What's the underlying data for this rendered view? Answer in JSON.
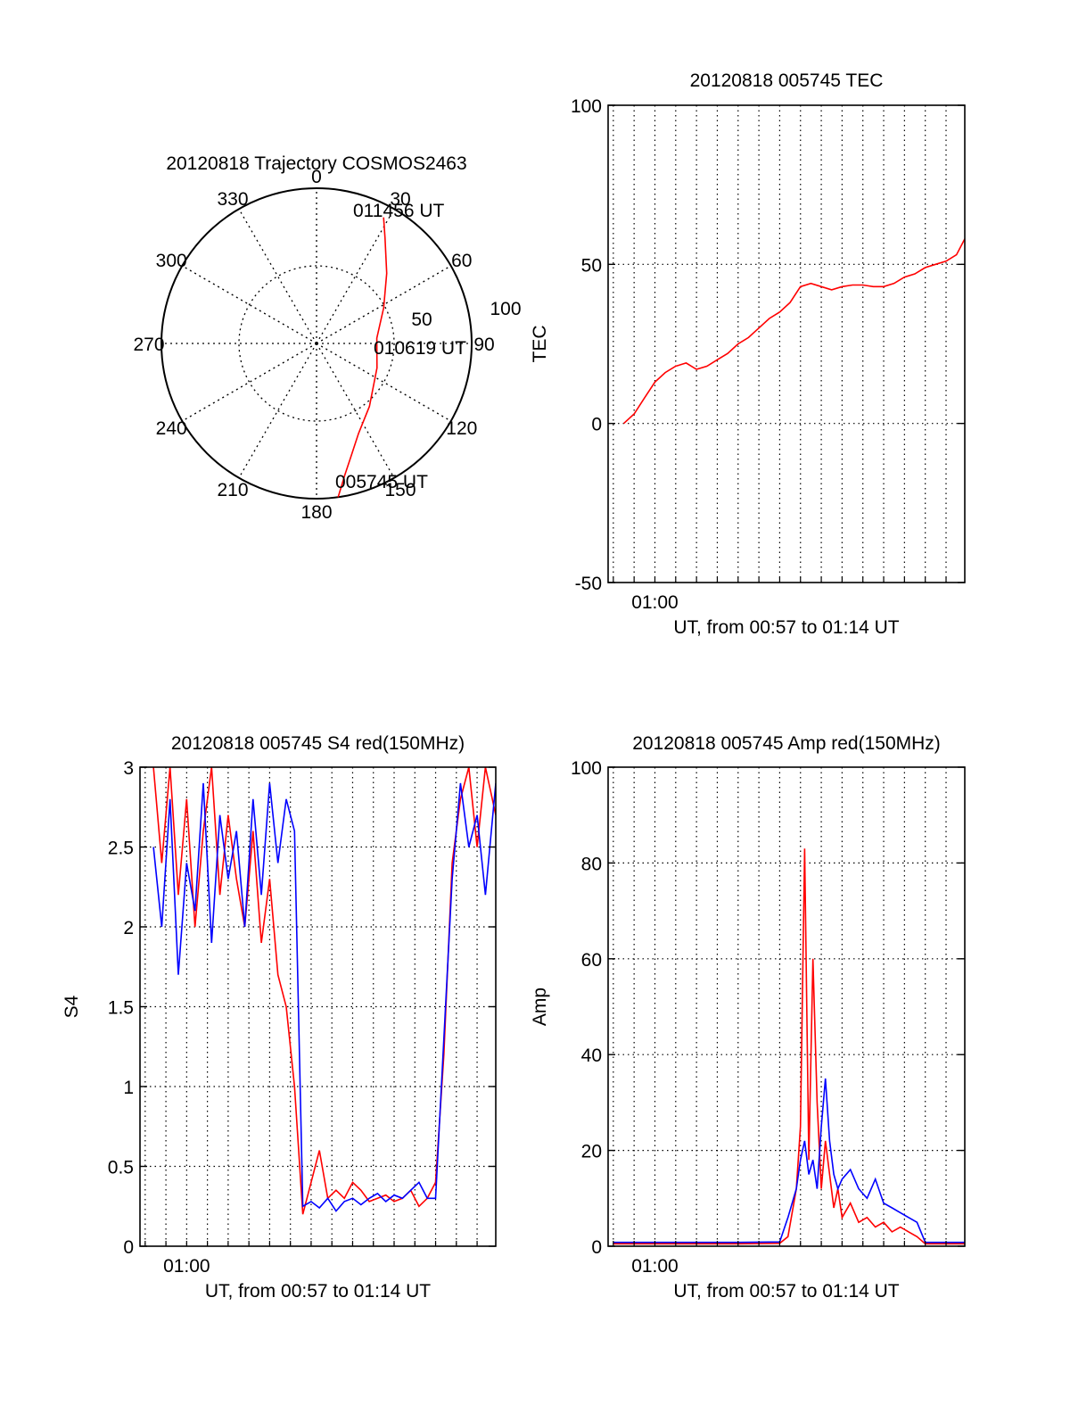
{
  "colors": {
    "red": "#ff0000",
    "blue": "#0000ff",
    "axis": "#000000",
    "grid": "#000000"
  },
  "chart_data": [
    {
      "type": "polar",
      "title": "20120818 Trajectory COSMOS2463",
      "angle_labels": [
        "0",
        "30",
        "60",
        "90",
        "120",
        "150",
        "180",
        "210",
        "240",
        "270",
        "300",
        "330"
      ],
      "radial_ticks": [
        50,
        100
      ],
      "radial_tick_labels": [
        "50",
        "100"
      ],
      "radial_range": [
        0,
        100
      ],
      "grid": true,
      "trajectory": {
        "azimuth_deg": [
          172,
          168,
          163,
          155,
          140,
          112,
          85,
          62,
          45,
          33,
          28
        ],
        "zenith": [
          100,
          87,
          76,
          64,
          53,
          42,
          39,
          49,
          64,
          81,
          92
        ]
      },
      "annotations": [
        "011456 UT",
        "010619 UT",
        "005745 UT"
      ]
    },
    {
      "type": "line",
      "title": "20120818 005745 TEC",
      "xlabel": "UT, from 00:57 to 01:14 UT",
      "ylabel": "TEC",
      "xlim": [
        57.75,
        74.9
      ],
      "ylim": [
        -50,
        100
      ],
      "yticks": [
        -50,
        0,
        50,
        100
      ],
      "ytick_labels": [
        "-50",
        "0",
        "50",
        "100"
      ],
      "xticks": [
        60
      ],
      "xtick_labels": [
        "01:00"
      ],
      "grid": true,
      "series": [
        {
          "color": "#ff0000",
          "x": [
            58.5,
            59.0,
            59.5,
            60.0,
            60.5,
            61.0,
            61.5,
            62.0,
            62.5,
            63.0,
            63.5,
            64.0,
            64.5,
            65.0,
            65.5,
            66.0,
            66.5,
            67.0,
            67.5,
            68.0,
            68.5,
            69.0,
            69.5,
            70.0,
            70.5,
            71.0,
            71.5,
            72.0,
            72.5,
            73.0,
            73.5,
            74.0,
            74.5,
            74.9
          ],
          "y": [
            0,
            3,
            8,
            13,
            16,
            18,
            19,
            17,
            18,
            20,
            22,
            25,
            27,
            30,
            33,
            35,
            38,
            43,
            44,
            43,
            42,
            43,
            43.5,
            43.5,
            43,
            43,
            44,
            46,
            47,
            49,
            50,
            51,
            53,
            58
          ]
        }
      ]
    },
    {
      "type": "line",
      "title": "20120818 005745 S4 red(150MHz)",
      "xlabel": "UT, from 00:57 to 01:14 UT",
      "ylabel": "S4",
      "xlim": [
        57.75,
        74.9
      ],
      "ylim": [
        0,
        3
      ],
      "yticks": [
        0,
        0.5,
        1,
        1.5,
        2,
        2.5,
        3
      ],
      "ytick_labels": [
        "0",
        "0.5",
        "1",
        "1.5",
        "2",
        "2.5",
        "3"
      ],
      "xticks": [
        60
      ],
      "xtick_labels": [
        "01:00"
      ],
      "grid": true,
      "series": [
        {
          "color": "#ff0000",
          "x": [
            58.4,
            58.8,
            59.2,
            59.6,
            60.0,
            60.4,
            60.8,
            61.2,
            61.6,
            62.0,
            62.4,
            62.8,
            63.2,
            63.6,
            64.0,
            64.4,
            64.8,
            65.2,
            65.6,
            66.0,
            66.4,
            66.8,
            67.2,
            67.6,
            68.0,
            68.4,
            68.8,
            69.2,
            69.6,
            70.0,
            70.4,
            70.8,
            71.2,
            71.6,
            72.0,
            72.4,
            72.8,
            73.2,
            73.6,
            74.0,
            74.4,
            74.9
          ],
          "y": [
            3.0,
            2.4,
            3.0,
            2.2,
            2.8,
            2.0,
            2.6,
            3.0,
            2.2,
            2.7,
            2.3,
            2.0,
            2.6,
            1.9,
            2.3,
            1.7,
            1.5,
            1.0,
            0.2,
            0.4,
            0.6,
            0.3,
            0.35,
            0.3,
            0.4,
            0.35,
            0.28,
            0.3,
            0.32,
            0.28,
            0.3,
            0.35,
            0.25,
            0.3,
            0.4,
            1.2,
            2.4,
            2.8,
            3.0,
            2.5,
            3.0,
            2.7
          ]
        },
        {
          "color": "#0000ff",
          "x": [
            58.4,
            58.8,
            59.2,
            59.6,
            60.0,
            60.4,
            60.8,
            61.2,
            61.6,
            62.0,
            62.4,
            62.8,
            63.2,
            63.6,
            64.0,
            64.4,
            64.8,
            65.2,
            65.6,
            66.0,
            66.4,
            66.8,
            67.2,
            67.6,
            68.0,
            68.4,
            68.8,
            69.2,
            69.6,
            70.0,
            70.4,
            70.8,
            71.2,
            71.6,
            72.0,
            72.4,
            72.8,
            73.2,
            73.6,
            74.0,
            74.4,
            74.9
          ],
          "y": [
            2.5,
            2.0,
            2.8,
            1.7,
            2.4,
            2.1,
            2.9,
            1.9,
            2.7,
            2.3,
            2.6,
            2.0,
            2.8,
            2.2,
            2.9,
            2.4,
            2.8,
            2.6,
            0.25,
            0.28,
            0.24,
            0.3,
            0.22,
            0.28,
            0.3,
            0.26,
            0.3,
            0.33,
            0.28,
            0.32,
            0.3,
            0.35,
            0.4,
            0.3,
            0.3,
            1.3,
            2.3,
            2.9,
            2.5,
            2.7,
            2.2,
            2.9
          ]
        }
      ]
    },
    {
      "type": "line",
      "title": "20120818 005745 Amp red(150MHz)",
      "xlabel": "UT, from 00:57 to 01:14 UT",
      "ylabel": "Amp",
      "xlim": [
        57.75,
        74.9
      ],
      "ylim": [
        0,
        100
      ],
      "yticks": [
        0,
        20,
        40,
        60,
        80,
        100
      ],
      "ytick_labels": [
        "0",
        "20",
        "40",
        "60",
        "80",
        "100"
      ],
      "xticks": [
        60
      ],
      "xtick_labels": [
        "01:00"
      ],
      "grid": true,
      "series": [
        {
          "color": "#ff0000",
          "x": [
            58.0,
            60.0,
            62.0,
            64.0,
            66.0,
            66.4,
            66.8,
            67.0,
            67.2,
            67.4,
            67.6,
            67.8,
            68.0,
            68.2,
            68.4,
            68.6,
            68.8,
            69.0,
            69.4,
            69.8,
            70.2,
            70.6,
            71.0,
            71.4,
            71.8,
            72.2,
            72.6,
            73.0,
            74.0,
            74.9
          ],
          "y": [
            0.5,
            0.5,
            0.5,
            0.5,
            0.6,
            2,
            12,
            25,
            83,
            18,
            60,
            30,
            12,
            22,
            15,
            8,
            12,
            6,
            9,
            5,
            6,
            4,
            5,
            3,
            4,
            3,
            2,
            0.5,
            0.5,
            0.5
          ]
        },
        {
          "color": "#0000ff",
          "x": [
            58.0,
            60.0,
            62.0,
            64.0,
            66.0,
            66.4,
            66.8,
            67.0,
            67.2,
            67.4,
            67.6,
            67.8,
            68.0,
            68.2,
            68.4,
            68.6,
            68.8,
            69.0,
            69.4,
            69.8,
            70.2,
            70.6,
            71.0,
            71.4,
            71.8,
            72.2,
            72.6,
            73.0,
            74.0,
            74.9
          ],
          "y": [
            0.8,
            0.8,
            0.8,
            0.8,
            0.9,
            6,
            12,
            18,
            22,
            15,
            18,
            12,
            25,
            35,
            22,
            15,
            12,
            14,
            16,
            12,
            10,
            14,
            9,
            8,
            7,
            6,
            5,
            0.8,
            0.8,
            0.8
          ]
        }
      ]
    }
  ]
}
